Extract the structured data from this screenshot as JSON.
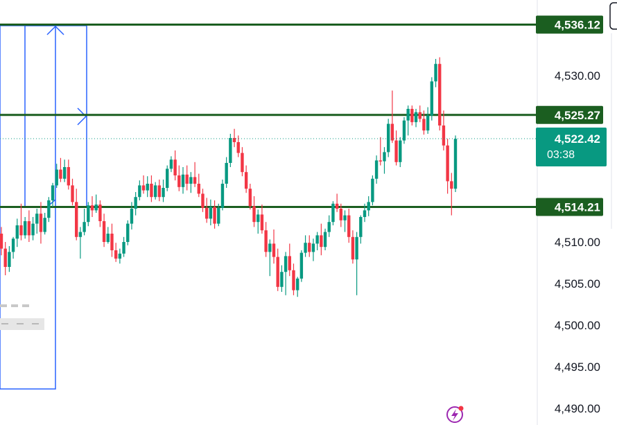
{
  "chart_data": {
    "type": "candlestick",
    "title": "",
    "xlabel": "",
    "ylabel": "",
    "ylim": [
      4489.0,
      4538.0
    ],
    "y_ticks": [
      "4,530.00",
      "4,510.00",
      "4,505.00",
      "4,500.00",
      "4,495.00",
      "4,490.00"
    ],
    "y_tick_values": [
      4530,
      4510,
      4505,
      4500,
      4495,
      4490
    ],
    "horizontal_levels": [
      {
        "value": 4536.12,
        "label": "4,536.12"
      },
      {
        "value": 4525.27,
        "label": "4,525.27"
      },
      {
        "value": 4514.21,
        "label": "4,514.21"
      }
    ],
    "current_price": {
      "value": 4522.42,
      "label": "4,522.42",
      "countdown": "03:38"
    },
    "colors": {
      "up": "#089981",
      "down": "#f23645",
      "level": "#1b5e20",
      "box": "#2962ff",
      "current": "#089981"
    },
    "candles": [
      [
        4511.0,
        4511.8,
        4508.4,
        4509.2
      ],
      [
        4509.2,
        4510.0,
        4506.0,
        4507.0
      ],
      [
        4507.0,
        4509.5,
        4506.4,
        4508.8
      ],
      [
        4508.8,
        4510.6,
        4508.0,
        4510.4
      ],
      [
        4510.4,
        4512.8,
        4509.4,
        4512.0
      ],
      [
        4512.0,
        4514.6,
        4510.2,
        4510.8
      ],
      [
        4510.8,
        4513.0,
        4510.4,
        4512.5
      ],
      [
        4512.5,
        4513.8,
        4510.0,
        4510.8
      ],
      [
        4510.8,
        4513.0,
        4510.2,
        4512.2
      ],
      [
        4512.2,
        4514.0,
        4511.0,
        4513.4
      ],
      [
        4513.4,
        4514.8,
        4509.8,
        4511.2
      ],
      [
        4511.2,
        4513.5,
        4510.9,
        4512.9
      ],
      [
        4512.9,
        4515.4,
        4512.4,
        4515.0
      ],
      [
        4515.0,
        4517.1,
        4514.2,
        4516.8
      ],
      [
        4516.8,
        4519.4,
        4516.5,
        4518.7
      ],
      [
        4518.7,
        4520.1,
        4517.2,
        4517.6
      ],
      [
        4517.6,
        4519.9,
        4517.2,
        4519.0
      ],
      [
        4519.0,
        4519.9,
        4516.3,
        4516.8
      ],
      [
        4516.8,
        4517.6,
        4514.4,
        4514.8
      ],
      [
        4514.8,
        4516.4,
        4510.2,
        4510.6
      ],
      [
        4510.6,
        4511.8,
        4508.0,
        4511.2
      ],
      [
        4511.2,
        4514.0,
        4510.8,
        4512.4
      ],
      [
        4512.4,
        4514.8,
        4511.9,
        4514.4
      ],
      [
        4514.4,
        4515.5,
        4513.0,
        4513.8
      ],
      [
        4513.8,
        4515.7,
        4513.5,
        4514.5
      ],
      [
        4514.5,
        4515.0,
        4511.8,
        4512.5
      ],
      [
        4512.5,
        4513.4,
        4509.4,
        4510.0
      ],
      [
        4510.0,
        4511.8,
        4509.8,
        4511.0
      ],
      [
        4511.0,
        4512.2,
        4508.2,
        4509.0
      ],
      [
        4509.0,
        4509.9,
        4507.6,
        4508.0
      ],
      [
        4508.0,
        4509.2,
        4507.4,
        4508.6
      ],
      [
        4508.6,
        4510.6,
        4508.2,
        4510.0
      ],
      [
        4510.0,
        4512.6,
        4509.6,
        4512.2
      ],
      [
        4512.2,
        4514.8,
        4511.5,
        4514.0
      ],
      [
        4514.0,
        4516.0,
        4513.2,
        4515.4
      ],
      [
        4515.4,
        4517.4,
        4515.0,
        4516.8
      ],
      [
        4516.8,
        4518.0,
        4515.8,
        4516.2
      ],
      [
        4516.2,
        4517.9,
        4515.4,
        4517.0
      ],
      [
        4517.0,
        4518.0,
        4514.8,
        4515.4
      ],
      [
        4515.4,
        4517.2,
        4515.1,
        4516.8
      ],
      [
        4516.8,
        4517.5,
        4514.9,
        4515.4
      ],
      [
        4515.4,
        4517.5,
        4514.8,
        4516.5
      ],
      [
        4516.5,
        4519.2,
        4516.1,
        4518.8
      ],
      [
        4518.8,
        4520.3,
        4518.4,
        4519.9
      ],
      [
        4519.9,
        4521.0,
        4517.4,
        4518.0
      ],
      [
        4518.0,
        4519.2,
        4516.1,
        4516.6
      ],
      [
        4516.6,
        4519.0,
        4515.8,
        4518.1
      ],
      [
        4518.1,
        4519.2,
        4516.2,
        4517.0
      ],
      [
        4517.0,
        4518.4,
        4515.9,
        4517.8
      ],
      [
        4517.8,
        4519.6,
        4516.6,
        4517.0
      ],
      [
        4517.0,
        4518.2,
        4515.4,
        4515.8
      ],
      [
        4515.8,
        4516.4,
        4513.6,
        4514.1
      ],
      [
        4514.1,
        4515.3,
        4512.3,
        4512.8
      ],
      [
        4512.8,
        4515.1,
        4512.0,
        4514.2
      ],
      [
        4514.2,
        4515.0,
        4511.6,
        4512.2
      ],
      [
        4512.2,
        4514.6,
        4511.9,
        4514.1
      ],
      [
        4514.1,
        4517.5,
        4513.8,
        4517.0
      ],
      [
        4517.0,
        4520.2,
        4516.5,
        4519.5
      ],
      [
        4519.5,
        4523.0,
        4519.0,
        4522.5
      ],
      [
        4522.5,
        4523.6,
        4521.4,
        4522.0
      ],
      [
        4522.0,
        4522.8,
        4520.2,
        4520.7
      ],
      [
        4520.7,
        4521.4,
        4517.9,
        4518.4
      ],
      [
        4518.4,
        4519.2,
        4515.9,
        4516.4
      ],
      [
        4516.4,
        4517.0,
        4513.9,
        4514.3
      ],
      [
        4514.3,
        4515.5,
        4511.8,
        4512.4
      ],
      [
        4512.4,
        4513.9,
        4511.0,
        4513.3
      ],
      [
        4513.3,
        4514.5,
        4511.0,
        4511.4
      ],
      [
        4511.4,
        4512.4,
        4508.2,
        4508.8
      ],
      [
        4508.8,
        4510.3,
        4505.9,
        4509.8
      ],
      [
        4509.8,
        4511.5,
        4507.4,
        4508.2
      ],
      [
        4508.2,
        4509.2,
        4504.1,
        4504.6
      ],
      [
        4504.6,
        4507.2,
        4504.0,
        4506.4
      ],
      [
        4506.4,
        4508.8,
        4503.6,
        4508.3
      ],
      [
        4508.3,
        4509.8,
        4505.9,
        4506.6
      ],
      [
        4506.6,
        4507.4,
        4503.6,
        4504.2
      ],
      [
        4504.2,
        4505.8,
        4503.4,
        4505.6
      ],
      [
        4505.6,
        4509.0,
        4505.2,
        4508.7
      ],
      [
        4508.7,
        4510.8,
        4508.2,
        4509.9
      ],
      [
        4509.9,
        4510.8,
        4508.2,
        4508.8
      ],
      [
        4508.8,
        4510.4,
        4507.7,
        4509.8
      ],
      [
        4509.8,
        4511.2,
        4509.0,
        4510.8
      ],
      [
        4510.8,
        4512.2,
        4508.4,
        4509.4
      ],
      [
        4509.4,
        4511.6,
        4509.0,
        4511.2
      ],
      [
        4511.2,
        4513.2,
        4510.6,
        4512.4
      ],
      [
        4512.4,
        4514.9,
        4512.0,
        4514.6
      ],
      [
        4514.6,
        4515.8,
        4513.6,
        4514.0
      ],
      [
        4514.0,
        4514.6,
        4511.8,
        4512.6
      ],
      [
        4512.6,
        4513.8,
        4511.2,
        4513.2
      ],
      [
        4513.2,
        4514.0,
        4509.9,
        4510.6
      ],
      [
        4510.6,
        4511.4,
        4507.4,
        4507.9
      ],
      [
        4507.9,
        4511.2,
        4503.6,
        4510.6
      ],
      [
        4510.6,
        4513.2,
        4509.8,
        4513.0
      ],
      [
        4513.0,
        4514.6,
        4512.4,
        4513.8
      ],
      [
        4513.8,
        4515.5,
        4513.1,
        4514.8
      ],
      [
        4514.8,
        4518.0,
        4514.4,
        4517.6
      ],
      [
        4517.6,
        4520.4,
        4517.0,
        4519.8
      ],
      [
        4519.8,
        4522.6,
        4519.2,
        4519.7
      ],
      [
        4519.7,
        4521.4,
        4518.2,
        4520.8
      ],
      [
        4520.8,
        4524.8,
        4520.2,
        4524.2
      ],
      [
        4524.2,
        4528.2,
        4521.9,
        4522.2
      ],
      [
        4522.2,
        4523.4,
        4519.2,
        4519.6
      ],
      [
        4519.6,
        4522.6,
        4519.0,
        4522.2
      ],
      [
        4522.2,
        4525.0,
        4521.8,
        4524.6
      ],
      [
        4524.6,
        4526.4,
        4522.8,
        4526.0
      ],
      [
        4526.0,
        4526.4,
        4524.0,
        4524.4
      ],
      [
        4524.4,
        4526.0,
        4523.8,
        4525.6
      ],
      [
        4525.6,
        4526.4,
        4524.4,
        4524.8
      ],
      [
        4524.8,
        4525.8,
        4522.9,
        4523.4
      ],
      [
        4523.4,
        4526.2,
        4523.0,
        4525.2
      ],
      [
        4525.2,
        4529.8,
        4524.6,
        4529.3
      ],
      [
        4529.3,
        4532.0,
        4528.6,
        4531.4
      ],
      [
        4531.4,
        4532.2,
        4523.4,
        4524.0
      ],
      [
        4524.0,
        4525.8,
        4521.0,
        4521.6
      ],
      [
        4521.6,
        4522.4,
        4515.8,
        4517.3
      ],
      [
        4517.3,
        4518.3,
        4513.2,
        4516.4
      ],
      [
        4516.4,
        4522.8,
        4516.0,
        4522.4
      ]
    ]
  }
}
